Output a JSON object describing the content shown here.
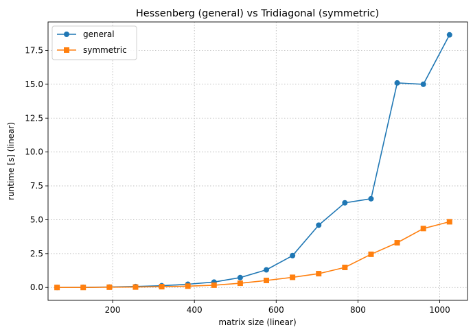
{
  "chart_data": {
    "type": "line",
    "title": "Hessenberg (general)  vs  Tridiagonal (symmetric)",
    "xlabel": "matrix size  (linear)",
    "ylabel": "runtime [s]  (linear)",
    "xlim": [
      42,
      1068
    ],
    "ylim": [
      -0.95,
      19.6
    ],
    "xticks": [
      200,
      400,
      600,
      800,
      1000
    ],
    "yticks": [
      0.0,
      2.5,
      5.0,
      7.5,
      10.0,
      12.5,
      15.0,
      17.5
    ],
    "xtick_labels": [
      "200",
      "400",
      "600",
      "800",
      "1000"
    ],
    "ytick_labels": [
      "0.0",
      "2.5",
      "5.0",
      "7.5",
      "10.0",
      "12.5",
      "15.0",
      "17.5"
    ],
    "grid": true,
    "legend_position": "top-left",
    "x": [
      64,
      128,
      192,
      256,
      320,
      384,
      448,
      512,
      576,
      640,
      704,
      768,
      832,
      896,
      960,
      1024
    ],
    "series": [
      {
        "name": "general",
        "color": "#1f77b4",
        "marker": "circle",
        "values": [
          0.0,
          0.01,
          0.03,
          0.07,
          0.13,
          0.24,
          0.4,
          0.73,
          1.3,
          2.35,
          4.6,
          6.25,
          6.55,
          15.1,
          15.0,
          18.65
        ]
      },
      {
        "name": "symmetric",
        "color": "#ff7f0e",
        "marker": "square",
        "values": [
          0.0,
          0.0,
          0.02,
          0.03,
          0.06,
          0.1,
          0.17,
          0.31,
          0.52,
          0.75,
          1.02,
          1.48,
          2.45,
          3.3,
          4.35,
          4.85
        ]
      }
    ]
  }
}
